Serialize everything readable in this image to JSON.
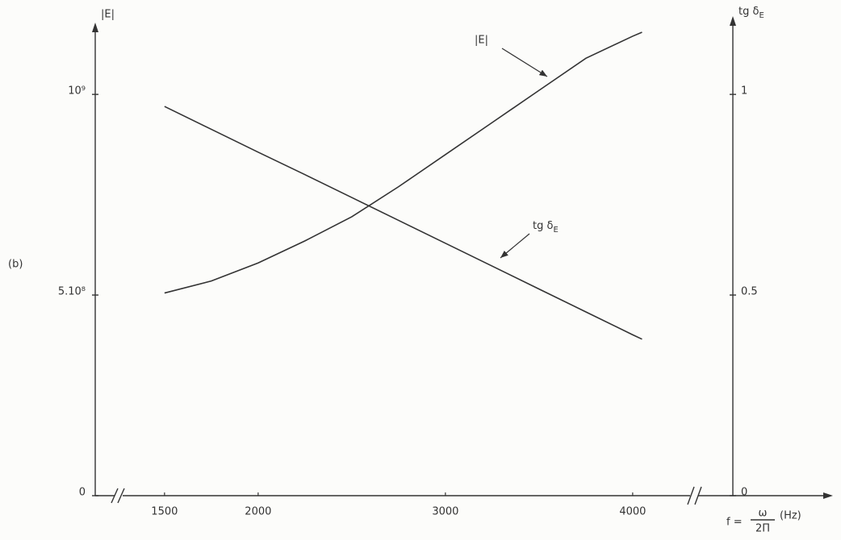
{
  "chart_data": {
    "type": "line",
    "panel_label": "(b)",
    "x_label": {
      "prefix": "f =",
      "numerator": "ω",
      "denominator": "2Π",
      "unit": "(Hz)"
    },
    "y_label": "|E|",
    "y2_label": {
      "text": "tg δ",
      "subscript": "E"
    },
    "x": [
      1500,
      1750,
      2000,
      2250,
      2500,
      2750,
      3000,
      3250,
      3500,
      3750,
      4000,
      4050
    ],
    "series": [
      {
        "name": "|E|",
        "color": "#333333",
        "values": [
          505000000,
          535000000,
          580000000,
          635000000,
          695000000,
          770000000,
          850000000,
          930000000,
          1010000000,
          1090000000,
          1145000000,
          1155000000
        ]
      },
      {
        "name": "tg δ",
        "name_subscript": "E",
        "color": "#333333",
        "axis": "y2",
        "values": [
          0.97,
          0.913,
          0.856,
          0.8,
          0.743,
          0.686,
          0.629,
          0.572,
          0.515,
          0.458,
          0.401,
          0.39
        ]
      }
    ],
    "xlim": [
      1130,
      4535
    ],
    "xticks": [
      1500,
      2000,
      3000,
      4000
    ],
    "ylim": [
      0,
      1175000000
    ],
    "yticks": [
      0,
      {
        "value": 500000000,
        "label": "5.10⁸"
      },
      {
        "value": 1000000000,
        "label": "10⁹"
      }
    ],
    "y2lim": [
      0,
      1.175
    ],
    "y2ticks": [
      0,
      0.5,
      1
    ]
  }
}
